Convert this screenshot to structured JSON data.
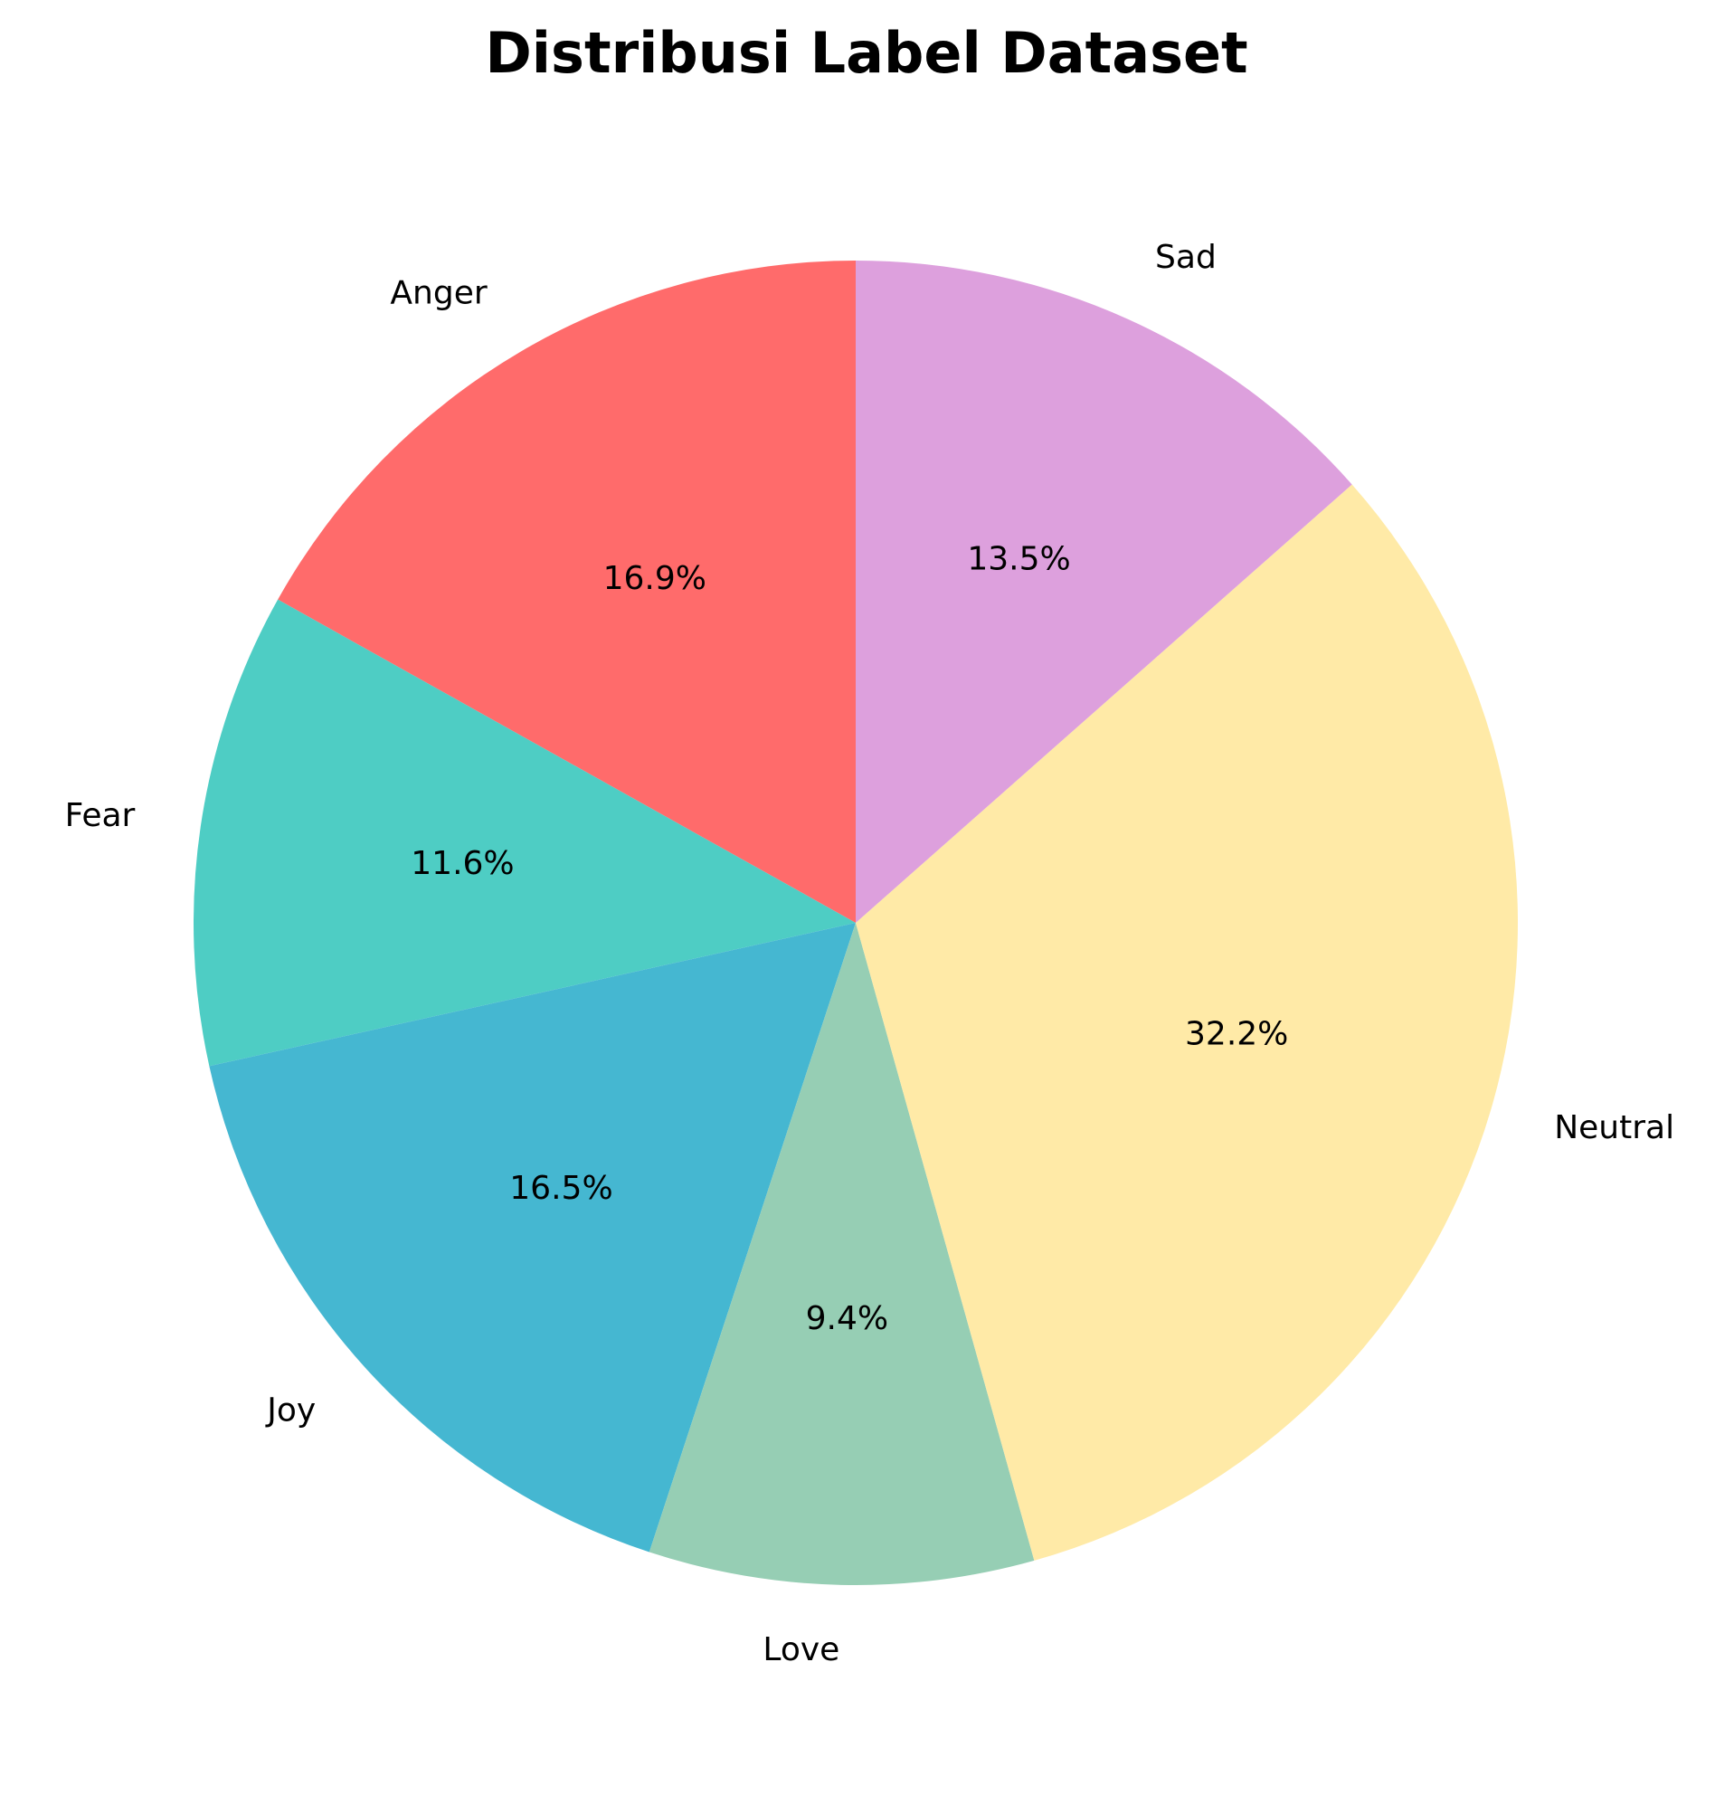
{
  "chart_data": {
    "type": "pie",
    "title": "Distribusi Label Dataset",
    "start_angle_deg": 90,
    "direction": "counterclockwise",
    "slices": [
      {
        "label": "Anger",
        "percent": 16.9,
        "pct_text": "16.9%",
        "color": "#FF6B6B"
      },
      {
        "label": "Fear",
        "percent": 11.6,
        "pct_text": "11.6%",
        "color": "#4ECDC4"
      },
      {
        "label": "Joy",
        "percent": 16.5,
        "pct_text": "16.5%",
        "color": "#45B7D1"
      },
      {
        "label": "Love",
        "percent": 9.4,
        "pct_text": "9.4%",
        "color": "#96CEB4"
      },
      {
        "label": "Neutral",
        "percent": 32.2,
        "pct_text": "32.2%",
        "color": "#FFEAA7"
      },
      {
        "label": "Sad",
        "percent": 13.5,
        "pct_text": "13.5%",
        "color": "#DDA0DD"
      }
    ],
    "legend": "none",
    "grid": false
  }
}
